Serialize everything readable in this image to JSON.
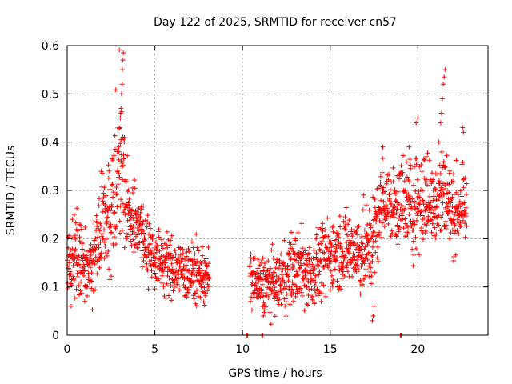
{
  "chart_data": {
    "type": "scatter",
    "title": "Day 122 of 2025, SRMTID for receiver cn57",
    "xlabel": "GPS time / hours",
    "ylabel": "SRMTID / TECUs",
    "xlim": [
      0,
      24
    ],
    "ylim": [
      0,
      0.6
    ],
    "xticks": [
      0,
      5,
      10,
      15,
      20
    ],
    "xtick_labels": [
      "0",
      "5",
      "10",
      "15",
      "20"
    ],
    "yticks": [
      0,
      0.1,
      0.2,
      0.3,
      0.4,
      0.5,
      0.6
    ],
    "ytick_labels": [
      "0",
      "0.1",
      "0.2",
      "0.3",
      "0.4",
      "0.5",
      "0.6"
    ],
    "grid": true,
    "marker": "+",
    "color": "#ff0000",
    "envelope": [
      [
        0.0,
        0.15,
        0.05
      ],
      [
        0.5,
        0.17,
        0.05
      ],
      [
        1.0,
        0.15,
        0.05
      ],
      [
        1.5,
        0.16,
        0.05
      ],
      [
        2.0,
        0.22,
        0.07
      ],
      [
        2.5,
        0.26,
        0.09
      ],
      [
        2.8,
        0.3,
        0.1
      ],
      [
        3.0,
        0.38,
        0.12
      ],
      [
        3.3,
        0.28,
        0.09
      ],
      [
        3.6,
        0.24,
        0.05
      ],
      [
        4.0,
        0.24,
        0.05
      ],
      [
        4.5,
        0.19,
        0.05
      ],
      [
        5.0,
        0.16,
        0.04
      ],
      [
        6.0,
        0.14,
        0.04
      ],
      [
        7.0,
        0.13,
        0.04
      ],
      [
        8.0,
        0.12,
        0.04
      ],
      [
        10.4,
        0.12,
        0.04
      ],
      [
        11.0,
        0.1,
        0.04
      ],
      [
        12.0,
        0.11,
        0.04
      ],
      [
        13.0,
        0.14,
        0.05
      ],
      [
        14.0,
        0.13,
        0.05
      ],
      [
        15.0,
        0.17,
        0.05
      ],
      [
        16.0,
        0.18,
        0.05
      ],
      [
        17.0,
        0.17,
        0.06
      ],
      [
        17.5,
        0.2,
        0.06
      ],
      [
        18.0,
        0.29,
        0.05
      ],
      [
        18.5,
        0.26,
        0.05
      ],
      [
        19.0,
        0.28,
        0.06
      ],
      [
        19.5,
        0.26,
        0.07
      ],
      [
        20.0,
        0.28,
        0.07
      ],
      [
        20.5,
        0.28,
        0.06
      ],
      [
        21.0,
        0.28,
        0.06
      ],
      [
        21.5,
        0.3,
        0.07
      ],
      [
        22.0,
        0.25,
        0.05
      ],
      [
        22.5,
        0.27,
        0.05
      ],
      [
        22.8,
        0.25,
        0.04
      ]
    ],
    "gaps": [
      [
        8.1,
        10.4
      ]
    ],
    "peaks": [
      [
        3.0,
        0.43
      ],
      [
        3.03,
        0.45
      ],
      [
        3.07,
        0.47
      ],
      [
        3.1,
        0.5
      ],
      [
        3.13,
        0.52
      ],
      [
        3.15,
        0.55
      ],
      [
        3.18,
        0.57
      ],
      [
        3.2,
        0.585
      ],
      [
        2.95,
        0.38
      ],
      [
        3.25,
        0.4
      ],
      [
        21.3,
        0.44
      ],
      [
        21.35,
        0.46
      ],
      [
        21.4,
        0.49
      ],
      [
        21.45,
        0.52
      ],
      [
        21.5,
        0.535
      ],
      [
        21.55,
        0.55
      ],
      [
        21.2,
        0.4
      ],
      [
        19.9,
        0.44
      ],
      [
        20.0,
        0.45
      ],
      [
        22.6,
        0.42
      ],
      [
        22.55,
        0.43
      ],
      [
        17.4,
        0.03
      ],
      [
        17.45,
        0.04
      ],
      [
        17.5,
        0.06
      ],
      [
        18.0,
        0.39
      ],
      [
        19.5,
        0.39
      ],
      [
        1.0,
        0.07
      ],
      [
        0.3,
        0.24
      ],
      [
        0.4,
        0.25
      ]
    ],
    "zeros": [
      10.2,
      10.25,
      10.3,
      11.1,
      11.15,
      19.0,
      19.05
    ]
  }
}
